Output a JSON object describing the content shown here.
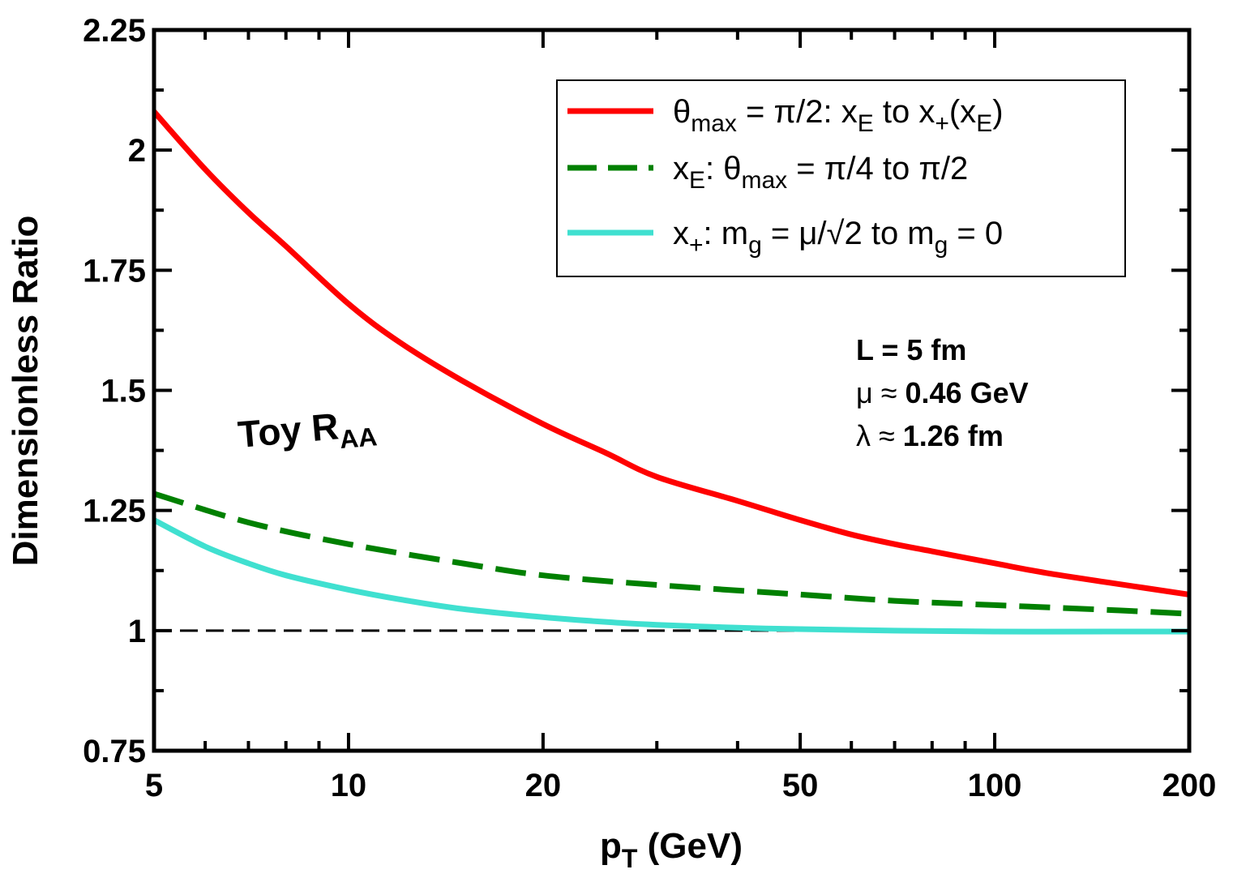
{
  "chart_data": {
    "type": "line",
    "xscale": "log",
    "xlabel": "p",
    "xlabel_sub": "T",
    "xlabel_unit": "(GeV)",
    "ylabel": "Dimensionless Ratio",
    "xlim": [
      5,
      200
    ],
    "ylim": [
      0.75,
      2.25
    ],
    "xticks": [
      5,
      10,
      20,
      50,
      100,
      200
    ],
    "xtick_labels": [
      "5",
      "10",
      "20",
      "50",
      "100",
      "200"
    ],
    "yticks": [
      0.75,
      1,
      1.25,
      1.5,
      1.75,
      2,
      2.25
    ],
    "ytick_labels": [
      "0.75",
      "1",
      "1.25",
      "1.5",
      "1.75",
      "2",
      "2.25"
    ],
    "reference_line": {
      "y": 1,
      "style": "dashed",
      "color": "#000000"
    },
    "series": [
      {
        "name": "θmax = π/2: xE to x+(xE)",
        "color": "#ff0000",
        "style": "solid",
        "x": [
          5,
          6,
          7,
          8,
          10,
          12,
          15,
          20,
          25,
          30,
          40,
          50,
          60,
          70,
          80,
          100,
          120,
          150,
          200
        ],
        "y": [
          2.08,
          1.96,
          1.87,
          1.8,
          1.68,
          1.6,
          1.52,
          1.43,
          1.37,
          1.32,
          1.27,
          1.23,
          1.2,
          1.18,
          1.165,
          1.14,
          1.12,
          1.1,
          1.075
        ]
      },
      {
        "name": "xE: θmax = π/4 to π/2",
        "color": "#008000",
        "style": "dashed",
        "x": [
          5,
          7,
          10,
          15,
          20,
          30,
          50,
          70,
          100,
          150,
          200
        ],
        "y": [
          1.285,
          1.225,
          1.18,
          1.14,
          1.115,
          1.095,
          1.075,
          1.062,
          1.053,
          1.043,
          1.035
        ]
      },
      {
        "name": "x+: mg = μ/√2 to mg = 0",
        "color": "#40e0d0",
        "style": "solid",
        "x": [
          5,
          6,
          7,
          8,
          10,
          12,
          15,
          20,
          25,
          30,
          40,
          50,
          70,
          100,
          150,
          200
        ],
        "y": [
          1.23,
          1.175,
          1.14,
          1.115,
          1.085,
          1.065,
          1.045,
          1.028,
          1.018,
          1.012,
          1.006,
          1.003,
          1.0,
          0.998,
          0.998,
          0.998
        ]
      }
    ],
    "legend": {
      "position": "top-right",
      "entries": [
        {
          "parts": [
            [
              "θ",
              ""
            ],
            [
              "max",
              "sub"
            ],
            [
              " = π/2: x",
              ""
            ],
            [
              "E",
              "sub"
            ],
            [
              " to x",
              ""
            ],
            [
              "+",
              "sub"
            ],
            [
              "(x",
              ""
            ],
            [
              "E",
              "sub"
            ],
            [
              ")",
              ""
            ]
          ]
        },
        {
          "parts": [
            [
              "x",
              ""
            ],
            [
              "E",
              "sub"
            ],
            [
              ": θ",
              ""
            ],
            [
              "max",
              "sub"
            ],
            [
              " = π/4 to π/2",
              ""
            ]
          ]
        },
        {
          "parts": [
            [
              "x",
              ""
            ],
            [
              "+",
              "sub"
            ],
            [
              ": m",
              ""
            ],
            [
              "g",
              "sub"
            ],
            [
              " = μ/√2 to m",
              ""
            ],
            [
              "g",
              "sub"
            ],
            [
              " = 0",
              ""
            ]
          ]
        }
      ]
    },
    "annotations": {
      "toy_label": "Toy R",
      "toy_label_sub": "AA",
      "params": [
        {
          "symbol": "",
          "text": "L = 5 fm"
        },
        {
          "symbol": "μ ≈ ",
          "text": "0.46 GeV"
        },
        {
          "symbol": "λ ≈ ",
          "text": "1.26 fm"
        }
      ]
    }
  }
}
